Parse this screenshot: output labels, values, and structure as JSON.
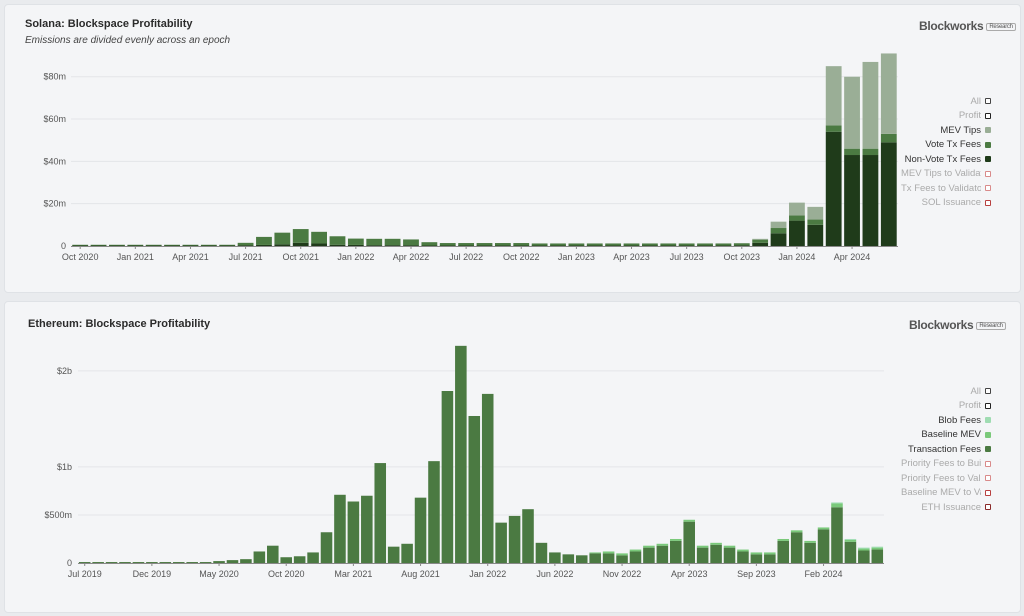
{
  "solana": {
    "title": "Solana: Blockspace Profitability",
    "subtitle": "Emissions are divided evenly across an epoch",
    "brand": "Blockworks",
    "badge": "Research",
    "legend": [
      {
        "label": "All",
        "color": "#ffffff",
        "border": "#444444",
        "active": false
      },
      {
        "label": "Profit",
        "color": "#ffffff",
        "border": "#222222",
        "active": false
      },
      {
        "label": "MEV Tips",
        "color": "#9aae96",
        "border": "#9aae96",
        "active": true
      },
      {
        "label": "Vote Tx Fees",
        "color": "#4b7a42",
        "border": "#4b7a42",
        "active": true
      },
      {
        "label": "Non-Vote Tx Fees",
        "color": "#1f3b1a",
        "border": "#1f3b1a",
        "active": true
      },
      {
        "label": "MEV Tips to Validators",
        "color": "#ffffff",
        "border": "#d98a8a",
        "active": false
      },
      {
        "label": "Tx Fees to Validators",
        "color": "#ffffff",
        "border": "#d98a8a",
        "active": false
      },
      {
        "label": "SOL Issuance",
        "color": "#ffffff",
        "border": "#b84040",
        "active": false
      }
    ]
  },
  "ethereum": {
    "title": "Ethereum: Blockspace Profitability",
    "brand": "Blockworks",
    "badge": "Research",
    "legend": [
      {
        "label": "All",
        "color": "#ffffff",
        "border": "#444444",
        "active": false
      },
      {
        "label": "Profit",
        "color": "#ffffff",
        "border": "#222222",
        "active": false
      },
      {
        "label": "Blob Fees",
        "color": "#9fdcb2",
        "border": "#9fdcb2",
        "active": true
      },
      {
        "label": "Baseline MEV",
        "color": "#7ac97a",
        "border": "#7ac97a",
        "active": true
      },
      {
        "label": "Transaction Fees",
        "color": "#4b7a42",
        "border": "#4b7a42",
        "active": true
      },
      {
        "label": "Priority Fees to Builders",
        "color": "#ffffff",
        "border": "#d98a8a",
        "active": false
      },
      {
        "label": "Priority Fees to Validators",
        "color": "#ffffff",
        "border": "#d98a8a",
        "active": false
      },
      {
        "label": "Baseline MEV to Validators",
        "color": "#ffffff",
        "border": "#b84040",
        "active": false
      },
      {
        "label": "ETH Issuance",
        "color": "#ffffff",
        "border": "#8a2a2a",
        "active": false
      }
    ]
  },
  "chart_data": [
    {
      "type": "bar",
      "stacked": true,
      "title": "Solana: Blockspace Profitability",
      "subtitle": "Emissions are divided evenly across an epoch",
      "ylim": [
        0,
        95
      ],
      "yunit": "m",
      "yticks": [
        {
          "value": 0,
          "label": "0"
        },
        {
          "value": 20,
          "label": "$20m"
        },
        {
          "value": 40,
          "label": "$40m"
        },
        {
          "value": 60,
          "label": "$60m"
        },
        {
          "value": 80,
          "label": "$80m"
        }
      ],
      "xticks": [
        {
          "index": 0,
          "label": "Oct 2020"
        },
        {
          "index": 3,
          "label": "Jan 2021"
        },
        {
          "index": 6,
          "label": "Apr 2021"
        },
        {
          "index": 9,
          "label": "Jul 2021"
        },
        {
          "index": 12,
          "label": "Oct 2021"
        },
        {
          "index": 15,
          "label": "Jan 2022"
        },
        {
          "index": 18,
          "label": "Apr 2022"
        },
        {
          "index": 21,
          "label": "Jul 2022"
        },
        {
          "index": 24,
          "label": "Oct 2022"
        },
        {
          "index": 27,
          "label": "Jan 2023"
        },
        {
          "index": 30,
          "label": "Apr 2023"
        },
        {
          "index": 33,
          "label": "Jul 2023"
        },
        {
          "index": 36,
          "label": "Oct 2023"
        },
        {
          "index": 39,
          "label": "Jan 2024"
        },
        {
          "index": 42,
          "label": "Apr 2024"
        }
      ],
      "categories": [
        "2020-10",
        "2020-11",
        "2020-12",
        "2021-01",
        "2021-02",
        "2021-03",
        "2021-04",
        "2021-05",
        "2021-06",
        "2021-07",
        "2021-08",
        "2021-09",
        "2021-10",
        "2021-11",
        "2021-12",
        "2022-01",
        "2022-02",
        "2022-03",
        "2022-04",
        "2022-05",
        "2022-06",
        "2022-07",
        "2022-08",
        "2022-09",
        "2022-10",
        "2022-11",
        "2022-12",
        "2023-01",
        "2023-02",
        "2023-03",
        "2023-04",
        "2023-05",
        "2023-06",
        "2023-07",
        "2023-08",
        "2023-09",
        "2023-10",
        "2023-11",
        "2023-12",
        "2024-01",
        "2024-02",
        "2024-03",
        "2024-04",
        "2024-05",
        "2024-06"
      ],
      "series": [
        {
          "name": "Non-Vote Tx Fees",
          "color": "#1f3b1a",
          "values": [
            0.2,
            0.2,
            0.2,
            0.2,
            0.2,
            0.2,
            0.2,
            0.2,
            0.2,
            0.3,
            0.5,
            0.8,
            1.5,
            1.2,
            0.6,
            0.5,
            0.4,
            0.4,
            0.3,
            0.2,
            0.2,
            0.2,
            0.2,
            0.2,
            0.2,
            0.2,
            0.2,
            0.2,
            0.2,
            0.2,
            0.2,
            0.2,
            0.2,
            0.2,
            0.2,
            0.2,
            0.3,
            1.5,
            6,
            12,
            10,
            54,
            43,
            43,
            49
          ]
        },
        {
          "name": "Vote Tx Fees",
          "color": "#4b7a42",
          "values": [
            0.3,
            0.3,
            0.3,
            0.3,
            0.3,
            0.3,
            0.3,
            0.3,
            0.3,
            1.2,
            3.8,
            5.5,
            6.5,
            5.5,
            4.0,
            3.0,
            3.0,
            3.0,
            2.8,
            1.6,
            1.2,
            1.2,
            1.2,
            1.2,
            1.2,
            1.0,
            1.0,
            1.0,
            1.0,
            1.0,
            1.0,
            1.0,
            1.0,
            1.0,
            1.0,
            1.0,
            1.0,
            1.5,
            2.5,
            2.5,
            2.5,
            3,
            3,
            3,
            4
          ]
        },
        {
          "name": "MEV Tips",
          "color": "#9aae96",
          "values": [
            0,
            0,
            0,
            0,
            0,
            0,
            0,
            0,
            0,
            0,
            0,
            0,
            0,
            0,
            0,
            0,
            0,
            0,
            0,
            0,
            0,
            0,
            0,
            0,
            0,
            0,
            0,
            0,
            0,
            0,
            0,
            0,
            0,
            0,
            0,
            0,
            0,
            0.3,
            3,
            6,
            6,
            28,
            34,
            41,
            38
          ]
        }
      ]
    },
    {
      "type": "bar",
      "stacked": true,
      "title": "Ethereum: Blockspace Profitability",
      "ylim": [
        0,
        2.3
      ],
      "yunit": "b",
      "yticks": [
        {
          "value": 0,
          "label": "0"
        },
        {
          "value": 0.5,
          "label": "$500m"
        },
        {
          "value": 1,
          "label": "$1b"
        },
        {
          "value": 2,
          "label": "$2b"
        }
      ],
      "xticks": [
        {
          "index": 0,
          "label": "Jul 2019"
        },
        {
          "index": 5,
          "label": "Dec 2019"
        },
        {
          "index": 10,
          "label": "May 2020"
        },
        {
          "index": 15,
          "label": "Oct 2020"
        },
        {
          "index": 20,
          "label": "Mar 2021"
        },
        {
          "index": 25,
          "label": "Aug 2021"
        },
        {
          "index": 30,
          "label": "Jan 2022"
        },
        {
          "index": 35,
          "label": "Jun 2022"
        },
        {
          "index": 40,
          "label": "Nov 2022"
        },
        {
          "index": 45,
          "label": "Apr 2023"
        },
        {
          "index": 50,
          "label": "Sep 2023"
        },
        {
          "index": 55,
          "label": "Feb 2024"
        }
      ],
      "categories": [
        "2019-07",
        "2019-08",
        "2019-09",
        "2019-10",
        "2019-11",
        "2019-12",
        "2020-01",
        "2020-02",
        "2020-03",
        "2020-04",
        "2020-05",
        "2020-06",
        "2020-07",
        "2020-08",
        "2020-09",
        "2020-10",
        "2020-11",
        "2020-12",
        "2021-01",
        "2021-02",
        "2021-03",
        "2021-04",
        "2021-05",
        "2021-06",
        "2021-07",
        "2021-08",
        "2021-09",
        "2021-10",
        "2021-11",
        "2021-12",
        "2022-01",
        "2022-02",
        "2022-03",
        "2022-04",
        "2022-05",
        "2022-06",
        "2022-07",
        "2022-08",
        "2022-09",
        "2022-10",
        "2022-11",
        "2022-12",
        "2023-01",
        "2023-02",
        "2023-03",
        "2023-04",
        "2023-05",
        "2023-06",
        "2023-07",
        "2023-08",
        "2023-09",
        "2023-10",
        "2023-11",
        "2023-12",
        "2024-01",
        "2024-02",
        "2024-03",
        "2024-04",
        "2024-05",
        "2024-06"
      ],
      "series": [
        {
          "name": "Transaction Fees",
          "color": "#4b7a42",
          "values": [
            0.01,
            0.01,
            0.01,
            0.01,
            0.01,
            0.01,
            0.01,
            0.01,
            0.01,
            0.01,
            0.02,
            0.03,
            0.04,
            0.12,
            0.18,
            0.06,
            0.07,
            0.11,
            0.32,
            0.71,
            0.64,
            0.7,
            1.04,
            0.17,
            0.2,
            0.68,
            1.06,
            1.79,
            2.26,
            1.53,
            1.76,
            0.42,
            0.49,
            0.56,
            0.21,
            0.11,
            0.09,
            0.08,
            0.1,
            0.1,
            0.08,
            0.12,
            0.16,
            0.18,
            0.23,
            0.43,
            0.16,
            0.19,
            0.16,
            0.12,
            0.09,
            0.09,
            0.23,
            0.32,
            0.21,
            0.35,
            0.58,
            0.22,
            0.13,
            0.14
          ]
        },
        {
          "name": "Baseline MEV",
          "color": "#7ac97a",
          "values": [
            0,
            0,
            0,
            0,
            0,
            0,
            0,
            0,
            0,
            0,
            0,
            0,
            0,
            0,
            0,
            0,
            0,
            0,
            0,
            0,
            0,
            0,
            0,
            0,
            0,
            0,
            0,
            0,
            0,
            0,
            0,
            0,
            0,
            0,
            0,
            0,
            0,
            0,
            0.01,
            0.02,
            0.02,
            0.02,
            0.02,
            0.02,
            0.02,
            0.02,
            0.02,
            0.02,
            0.02,
            0.02,
            0.02,
            0.02,
            0.02,
            0.02,
            0.02,
            0.02,
            0.04,
            0.02,
            0.02,
            0.02
          ]
        },
        {
          "name": "Blob Fees",
          "color": "#9fdcb2",
          "values": [
            0,
            0,
            0,
            0,
            0,
            0,
            0,
            0,
            0,
            0,
            0,
            0,
            0,
            0,
            0,
            0,
            0,
            0,
            0,
            0,
            0,
            0,
            0,
            0,
            0,
            0,
            0,
            0,
            0,
            0,
            0,
            0,
            0,
            0,
            0,
            0,
            0,
            0,
            0,
            0,
            0,
            0,
            0,
            0,
            0,
            0,
            0,
            0,
            0,
            0,
            0,
            0,
            0,
            0,
            0,
            0,
            0.01,
            0.01,
            0.01,
            0.01
          ]
        }
      ]
    }
  ]
}
